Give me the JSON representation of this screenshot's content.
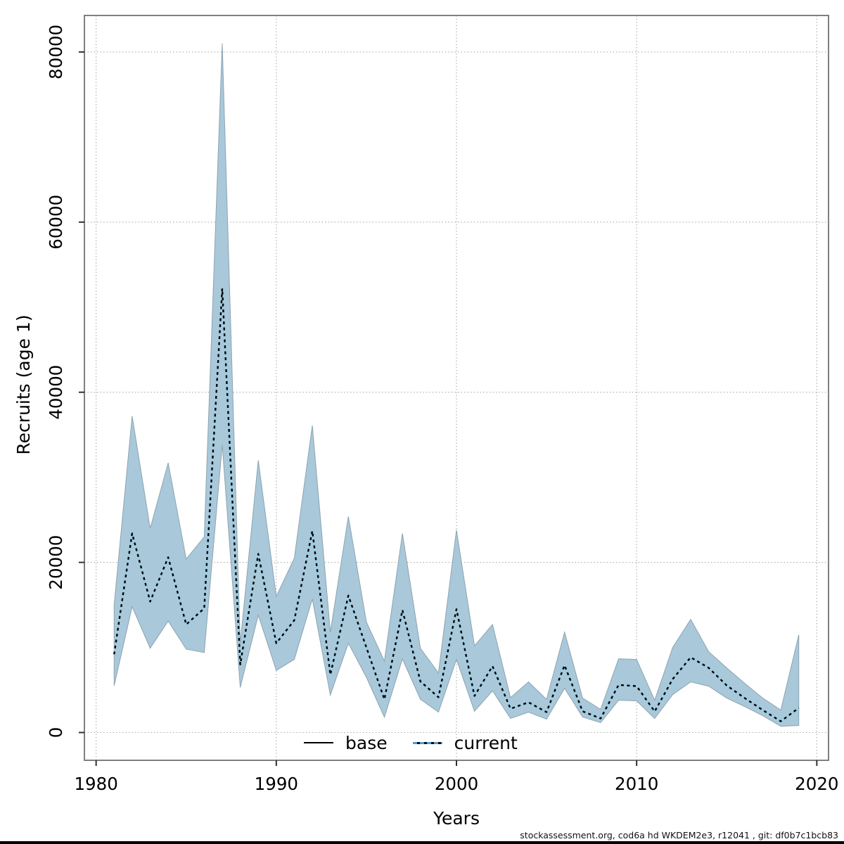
{
  "chart_data": {
    "type": "line",
    "title": "",
    "xlabel": "Years",
    "ylabel": "Recruits (age 1)",
    "xlim": [
      1979.35,
      2020.65
    ],
    "ylim": [
      -3265,
      84290
    ],
    "xticks": [
      1980,
      1990,
      2000,
      2010,
      2020
    ],
    "yticks": [
      0,
      20000,
      40000,
      60000,
      80000
    ],
    "grid": "dotted",
    "legend": [
      {
        "label": "base",
        "style": "solid-black-line"
      },
      {
        "label": "current",
        "style": "dotted-blue-line"
      }
    ],
    "series": {
      "name": "Recruits (age 1) with 95% confidence band",
      "years": [
        1981,
        1982,
        1983,
        1984,
        1985,
        1986,
        1987,
        1988,
        1989,
        1990,
        1991,
        1992,
        1993,
        1994,
        1995,
        1996,
        1997,
        1998,
        1999,
        2000,
        2001,
        2002,
        2003,
        2004,
        2005,
        2006,
        2007,
        2008,
        2009,
        2010,
        2011,
        2012,
        2013,
        2014,
        2015,
        2016,
        2017,
        2018,
        2019
      ],
      "estimate": [
        9200,
        23400,
        15400,
        20600,
        12700,
        14600,
        52200,
        8000,
        21000,
        10500,
        13200,
        23700,
        6800,
        16100,
        10000,
        3900,
        14400,
        6000,
        4150,
        14500,
        4300,
        7800,
        2800,
        3550,
        2400,
        7900,
        2500,
        1650,
        5600,
        5450,
        2480,
        6280,
        8840,
        7600,
        5530,
        4050,
        2640,
        1320,
        2890
      ],
      "lower": [
        5500,
        14800,
        9900,
        13100,
        9800,
        9400,
        33800,
        5300,
        13800,
        7300,
        8600,
        15700,
        4400,
        10500,
        6500,
        1800,
        8650,
        3900,
        2400,
        8600,
        2500,
        4900,
        1650,
        2400,
        1570,
        5200,
        1820,
        1160,
        3800,
        3720,
        1650,
        4460,
        5950,
        5450,
        4050,
        3060,
        1980,
        740,
        830
      ],
      "upper": [
        15000,
        37200,
        24000,
        31700,
        20400,
        23000,
        81000,
        10500,
        32000,
        16000,
        20500,
        36100,
        11800,
        25400,
        13000,
        8400,
        23400,
        9900,
        7000,
        23800,
        10200,
        12700,
        4100,
        5950,
        3900,
        11800,
        4050,
        2730,
        8670,
        8590,
        3800,
        10000,
        13300,
        9500,
        7600,
        5780,
        4050,
        2640,
        11480
      ]
    },
    "colors": {
      "band_fill": "#a9c8da",
      "band_edge": "#8da4b0",
      "current_line": "#4d9fce",
      "current_line_light": "#97cfe8",
      "base_line": "#000000",
      "grid": "#aaaaaa",
      "box": "#7f7f7f",
      "tick": "#303030"
    },
    "footer": "stockassessment.org, cod6a  hd  WKDEM2e3, r12041 , git: df0b7c1bcb83"
  }
}
